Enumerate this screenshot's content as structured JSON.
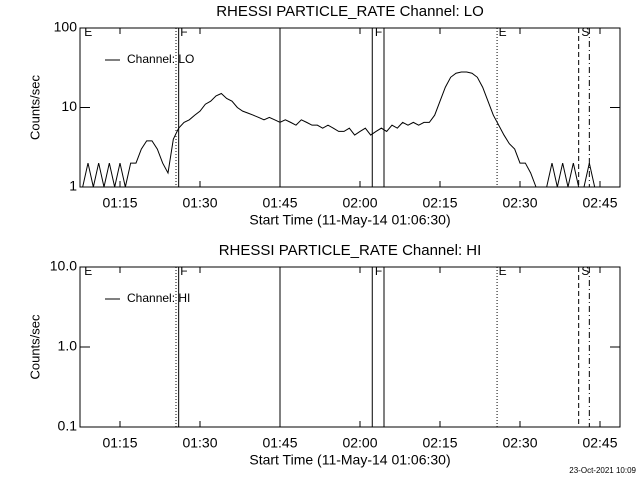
{
  "chart_data": [
    {
      "type": "line",
      "title": "RHESSI PARTICLE_RATE Channel: LO",
      "x_label": "Start Time (11-May-14 01:06:30)",
      "y_label": "Counts/sec",
      "log_y": true,
      "xlim": [
        7.5,
        108.75
      ],
      "ylim": [
        1,
        100
      ],
      "xticks": [
        {
          "value": 15,
          "label": "01:15"
        },
        {
          "value": 30,
          "label": "01:30"
        },
        {
          "value": 45,
          "label": "01:45"
        },
        {
          "value": 60,
          "label": "02:00"
        },
        {
          "value": 75,
          "label": "02:15"
        },
        {
          "value": 90,
          "label": "02:30"
        },
        {
          "value": 105,
          "label": "02:45"
        }
      ],
      "yticks": [
        1,
        10,
        100
      ],
      "x": [
        8,
        9,
        10,
        11,
        12,
        13,
        14,
        15,
        16,
        17,
        18,
        19,
        20,
        21,
        22,
        23,
        24,
        25,
        26,
        27,
        28,
        29,
        30,
        31,
        32,
        33,
        34,
        35,
        36,
        37,
        38,
        39,
        40,
        41,
        42,
        43,
        44,
        45,
        46,
        47,
        48,
        49,
        50,
        51,
        52,
        53,
        54,
        55,
        56,
        57,
        58,
        59,
        60,
        61,
        62,
        63,
        64,
        65,
        66,
        67,
        68,
        69,
        70,
        71,
        72,
        73,
        74,
        75,
        76,
        77,
        78,
        79,
        80,
        81,
        82,
        83,
        84,
        85,
        86,
        87,
        88,
        89,
        90,
        91,
        92,
        93,
        94,
        95,
        96,
        97,
        98,
        99,
        100,
        101,
        102,
        103,
        104,
        105
      ],
      "series": [
        {
          "name": "Channel: LO",
          "color": "#000000",
          "values": [
            1,
            2,
            1,
            2,
            1,
            2,
            1,
            2,
            1,
            2,
            2,
            3,
            3.8,
            3.8,
            3,
            2,
            1.5,
            4,
            5.5,
            6.5,
            7,
            8,
            9,
            11,
            12,
            14,
            15,
            13,
            12,
            10,
            9,
            8.5,
            8,
            7.5,
            7,
            7.5,
            7,
            6.5,
            7,
            6.5,
            6,
            7,
            6.5,
            6,
            6,
            5.5,
            6,
            5.5,
            5,
            5,
            5.5,
            4.5,
            5,
            5.5,
            4.5,
            5,
            5.5,
            5,
            6,
            5.5,
            6.5,
            6,
            6.5,
            6,
            6.5,
            6.5,
            8,
            12,
            18,
            24,
            27,
            28,
            28,
            27,
            24,
            18,
            12,
            8,
            6,
            4.5,
            3.5,
            3,
            2,
            2,
            1.5,
            1,
            1,
            1,
            2,
            1,
            2,
            1,
            2,
            1,
            1,
            2,
            1,
            1
          ]
        }
      ],
      "markers": [
        {
          "x": 25.5,
          "style": "dotted"
        },
        {
          "x": 26,
          "style": "solid"
        },
        {
          "x": 45,
          "style": "solid"
        },
        {
          "x": 62.3,
          "style": "solid"
        },
        {
          "x": 64.5,
          "style": "solid"
        },
        {
          "x": 85.7,
          "style": "dotted"
        },
        {
          "x": 101,
          "style": "dashed"
        },
        {
          "x": 103,
          "style": "dashdot"
        }
      ],
      "marker_labels": [
        {
          "text": "E",
          "x": 8.3
        },
        {
          "text": "F",
          "x": 26.3
        },
        {
          "text": "F",
          "x": 62.8
        },
        {
          "text": "E",
          "x": 86
        },
        {
          "text": "S",
          "x": 101.5
        }
      ]
    },
    {
      "type": "line",
      "title": "RHESSI PARTICLE_RATE Channel: HI",
      "x_label": "Start Time (11-May-14 01:06:30)",
      "y_label": "Counts/sec",
      "log_y": true,
      "xlim": [
        7.5,
        108.75
      ],
      "ylim": [
        0.1,
        10
      ],
      "xticks": [
        {
          "value": 15,
          "label": "01:15"
        },
        {
          "value": 30,
          "label": "01:30"
        },
        {
          "value": 45,
          "label": "01:45"
        },
        {
          "value": 60,
          "label": "02:00"
        },
        {
          "value": 75,
          "label": "02:15"
        },
        {
          "value": 90,
          "label": "02:30"
        },
        {
          "value": 105,
          "label": "02:45"
        }
      ],
      "yticks": [
        0.1,
        {
          "value": 1,
          "label": "1.0"
        },
        {
          "value": 10,
          "label": "10.0"
        }
      ],
      "x": [],
      "series": [
        {
          "name": "Channel: HI",
          "color": "#000000",
          "values": []
        }
      ],
      "markers": [
        {
          "x": 25.5,
          "style": "dotted"
        },
        {
          "x": 26,
          "style": "solid"
        },
        {
          "x": 45,
          "style": "solid"
        },
        {
          "x": 62.3,
          "style": "solid"
        },
        {
          "x": 64.5,
          "style": "solid"
        },
        {
          "x": 85.7,
          "style": "dotted"
        },
        {
          "x": 101,
          "style": "dashed"
        },
        {
          "x": 103,
          "style": "dashdot"
        }
      ],
      "marker_labels": [
        {
          "text": "E",
          "x": 8.3
        },
        {
          "text": "F",
          "x": 26.3
        },
        {
          "text": "F",
          "x": 62.8
        },
        {
          "text": "E",
          "x": 86
        },
        {
          "text": "S",
          "x": 101.5
        }
      ]
    }
  ],
  "footer": "23-Oct-2021 10:09"
}
